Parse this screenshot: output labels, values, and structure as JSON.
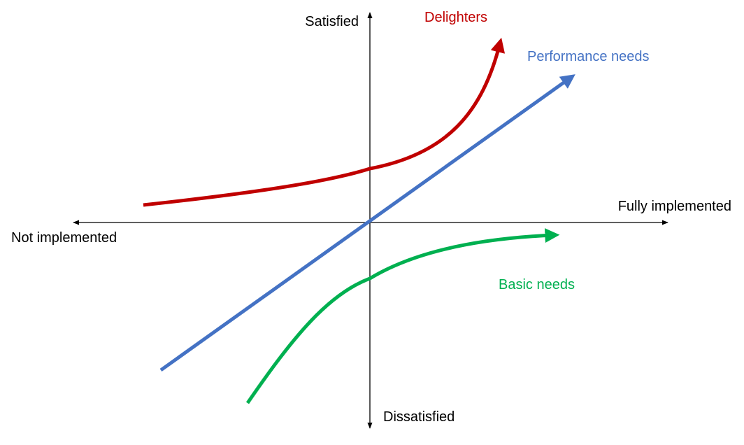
{
  "axes": {
    "x_positive_label": "Fully implemented",
    "x_negative_label": "Not implemented",
    "y_positive_label": "Satisfied",
    "y_negative_label": "Dissatisfied",
    "axis_color": "#000000"
  },
  "curves": [
    {
      "id": "delighters",
      "label": "Delighters",
      "color": "#C00000"
    },
    {
      "id": "performance",
      "label": "Performance needs",
      "color": "#4472C4"
    },
    {
      "id": "basic",
      "label": "Basic needs",
      "color": "#00B050"
    }
  ]
}
